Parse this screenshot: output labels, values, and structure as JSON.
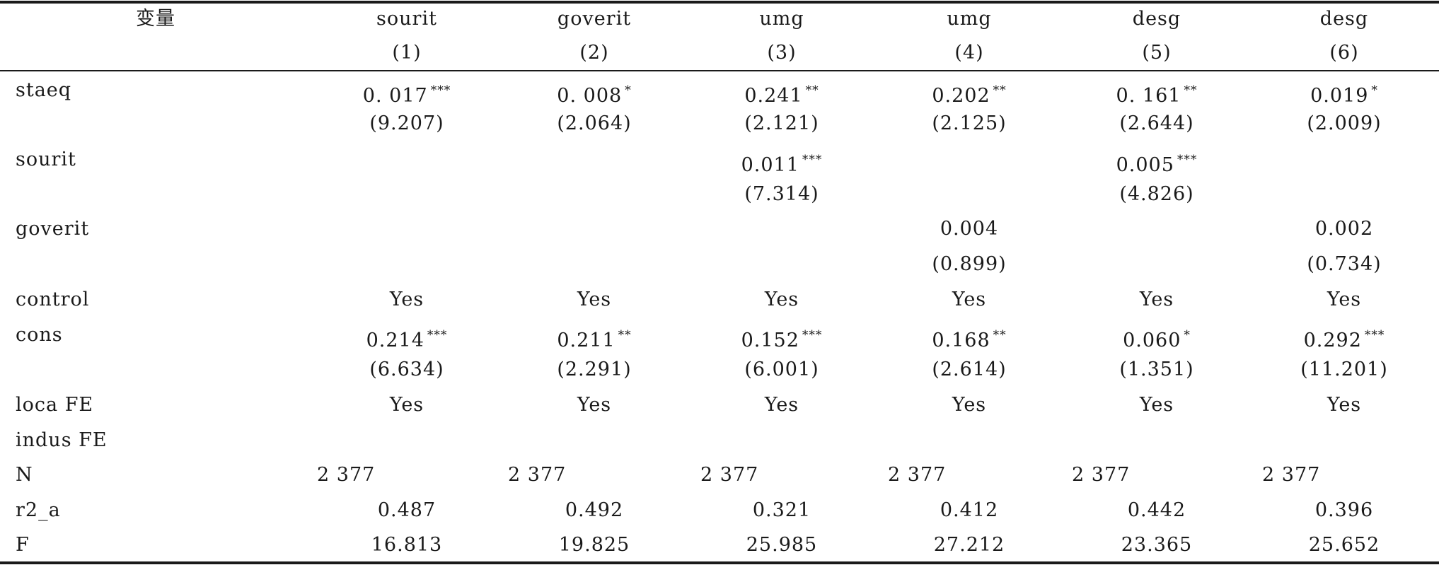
{
  "table": {
    "header_label": "变量",
    "dep_vars": [
      "sourit",
      "goverit",
      "umg",
      "umg",
      "desg",
      "desg"
    ],
    "col_numbers": [
      "(1)",
      "(2)",
      "(3)",
      "(4)",
      "(5)",
      "(6)"
    ],
    "rows": {
      "staeq": {
        "label": "staeq",
        "coef": [
          "0. 017",
          "0. 008",
          "0.241",
          "0.202",
          "0. 161",
          "0.019"
        ],
        "stars": [
          "***",
          "*",
          "**",
          "**",
          "**",
          "*"
        ],
        "t": [
          "(9.207)",
          "(2.064)",
          "(2.121)",
          "(2.125)",
          "(2.644)",
          "(2.009)"
        ]
      },
      "sourit": {
        "label": "sourit",
        "coef": [
          "",
          "",
          "0.011",
          "",
          "0.005",
          ""
        ],
        "stars": [
          "",
          "",
          "***",
          "",
          "***",
          ""
        ],
        "t": [
          "",
          "",
          "(7.314)",
          "",
          "(4.826)",
          ""
        ]
      },
      "goverit": {
        "label": "goverit",
        "coef": [
          "",
          "",
          "",
          "0.004",
          "",
          "0.002"
        ],
        "stars": [
          "",
          "",
          "",
          "",
          "",
          ""
        ],
        "t": [
          "",
          "",
          "",
          "(0.899)",
          "",
          "(0.734)"
        ]
      },
      "control": {
        "label": "control",
        "values": [
          "Yes",
          "Yes",
          "Yes",
          "Yes",
          "Yes",
          "Yes"
        ]
      },
      "cons": {
        "label": "cons",
        "coef": [
          "0.214",
          "0.211",
          "0.152",
          "0.168",
          "0.060",
          "0.292"
        ],
        "stars": [
          "***",
          "**",
          "***",
          "**",
          "*",
          "***"
        ],
        "t": [
          "(6.634)",
          "(2.291)",
          "(6.001)",
          "(2.614)",
          "(1.351)",
          "(11.201)"
        ]
      },
      "loca_fe": {
        "label": "loca FE",
        "values": [
          "Yes",
          "Yes",
          "Yes",
          "Yes",
          "Yes",
          "Yes"
        ]
      },
      "indus_fe": {
        "label": "indus FE",
        "values": [
          "",
          "",
          "",
          "",
          "",
          ""
        ]
      },
      "n": {
        "label": "N",
        "values": [
          "2 377",
          "2 377",
          "2 377",
          "2 377",
          "2 377",
          "2 377"
        ]
      },
      "r2_a": {
        "label": "r2_a",
        "values": [
          "0.487",
          "0.492",
          "0.321",
          "0.412",
          "0.442",
          "0.396"
        ]
      },
      "f": {
        "label": "F",
        "values": [
          "16.813",
          "19.825",
          "25.985",
          "27.212",
          "23.365",
          "25.652"
        ]
      }
    }
  }
}
